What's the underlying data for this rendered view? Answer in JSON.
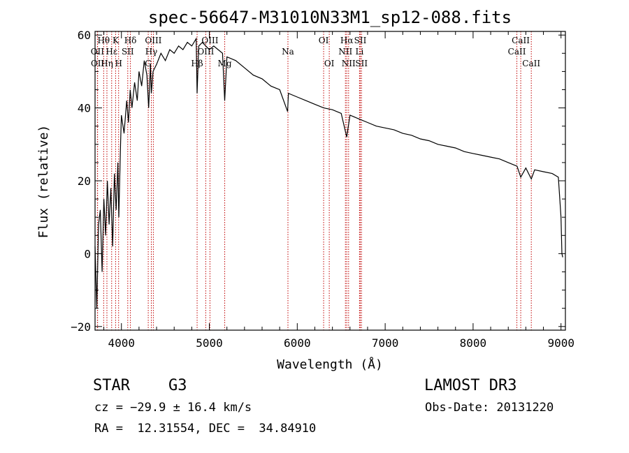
{
  "chart_data": {
    "type": "line",
    "title": "spec-56647-M31010N33M1_sp12-088.fits",
    "xlabel": "Wavelength (Å)",
    "ylabel": "Flux (relative)",
    "xlim": [
      3700,
      9050
    ],
    "ylim": [
      -21,
      61
    ],
    "xticks": [
      4000,
      5000,
      6000,
      7000,
      8000,
      9000
    ],
    "yticks": [
      -20,
      0,
      20,
      40,
      60
    ],
    "series": [
      {
        "name": "spectrum",
        "points": [
          [
            3700,
            2
          ],
          [
            3720,
            -15
          ],
          [
            3740,
            8
          ],
          [
            3760,
            12
          ],
          [
            3780,
            -5
          ],
          [
            3800,
            15
          ],
          [
            3820,
            5
          ],
          [
            3840,
            20
          ],
          [
            3860,
            8
          ],
          [
            3880,
            18
          ],
          [
            3900,
            2
          ],
          [
            3920,
            22
          ],
          [
            3940,
            12
          ],
          [
            3960,
            25
          ],
          [
            3970,
            10
          ],
          [
            3990,
            30
          ],
          [
            4000,
            38
          ],
          [
            4030,
            33
          ],
          [
            4060,
            42
          ],
          [
            4080,
            36
          ],
          [
            4100,
            45
          ],
          [
            4120,
            40
          ],
          [
            4150,
            47
          ],
          [
            4180,
            42
          ],
          [
            4200,
            50
          ],
          [
            4230,
            46
          ],
          [
            4260,
            53
          ],
          [
            4290,
            49
          ],
          [
            4310,
            40
          ],
          [
            4330,
            52
          ],
          [
            4340,
            44
          ],
          [
            4360,
            50
          ],
          [
            4400,
            52
          ],
          [
            4450,
            55
          ],
          [
            4500,
            53
          ],
          [
            4550,
            56
          ],
          [
            4600,
            55
          ],
          [
            4650,
            57
          ],
          [
            4700,
            56
          ],
          [
            4750,
            58
          ],
          [
            4800,
            57
          ],
          [
            4850,
            59
          ],
          [
            4861,
            44
          ],
          [
            4880,
            57
          ],
          [
            4920,
            58
          ],
          [
            4960,
            57
          ],
          [
            5000,
            56
          ],
          [
            5050,
            57
          ],
          [
            5100,
            56
          ],
          [
            5150,
            55
          ],
          [
            5175,
            42
          ],
          [
            5200,
            54
          ],
          [
            5300,
            53
          ],
          [
            5400,
            51
          ],
          [
            5500,
            49
          ],
          [
            5600,
            48
          ],
          [
            5700,
            46
          ],
          [
            5800,
            45
          ],
          [
            5890,
            39
          ],
          [
            5900,
            44
          ],
          [
            6000,
            43
          ],
          [
            6100,
            42
          ],
          [
            6200,
            41
          ],
          [
            6300,
            40
          ],
          [
            6400,
            39.5
          ],
          [
            6500,
            38.5
          ],
          [
            6563,
            32
          ],
          [
            6600,
            38
          ],
          [
            6700,
            37
          ],
          [
            6800,
            36
          ],
          [
            6900,
            35
          ],
          [
            7000,
            34.5
          ],
          [
            7100,
            34
          ],
          [
            7200,
            33
          ],
          [
            7300,
            32.5
          ],
          [
            7400,
            31.5
          ],
          [
            7500,
            31
          ],
          [
            7600,
            30
          ],
          [
            7700,
            29.5
          ],
          [
            7800,
            29
          ],
          [
            7900,
            28
          ],
          [
            8000,
            27.5
          ],
          [
            8100,
            27
          ],
          [
            8200,
            26.5
          ],
          [
            8300,
            26
          ],
          [
            8400,
            25
          ],
          [
            8500,
            24
          ],
          [
            8542,
            21
          ],
          [
            8600,
            23.5
          ],
          [
            8662,
            20.5
          ],
          [
            8700,
            23
          ],
          [
            8800,
            22.5
          ],
          [
            8900,
            22
          ],
          [
            8970,
            21
          ],
          [
            9000,
            10
          ],
          [
            9010,
            0
          ],
          [
            9020,
            -1
          ]
        ]
      }
    ],
    "lines": [
      {
        "label": "Hθ",
        "wavelength": 3798,
        "row": 1
      },
      {
        "label": "OII",
        "wavelength": 3727,
        "row": 2
      },
      {
        "label": "OII",
        "wavelength": 3729,
        "row": 3
      },
      {
        "label": "Hε",
        "wavelength": 3889,
        "row": 2
      },
      {
        "label": "Hη",
        "wavelength": 3835,
        "row": 3
      },
      {
        "label": "K",
        "wavelength": 3934,
        "row": 1
      },
      {
        "label": "H",
        "wavelength": 3968,
        "row": 3
      },
      {
        "label": "Hδ",
        "wavelength": 4102,
        "row": 1
      },
      {
        "label": "SII",
        "wavelength": 4072,
        "row": 2
      },
      {
        "label": "OIII",
        "wavelength": 4363,
        "row": 1
      },
      {
        "label": "Hγ",
        "wavelength": 4340,
        "row": 2
      },
      {
        "label": "G",
        "wavelength": 4305,
        "row": 3
      },
      {
        "label": "Hβ",
        "wavelength": 4861,
        "row": 3
      },
      {
        "label": "OIII",
        "wavelength": 5007,
        "row": 1
      },
      {
        "label": "OIII",
        "wavelength": 4959,
        "row": 2
      },
      {
        "label": "Mg",
        "wavelength": 5175,
        "row": 3
      },
      {
        "label": "Na",
        "wavelength": 5894,
        "row": 2
      },
      {
        "label": "OI",
        "wavelength": 6300,
        "row": 1
      },
      {
        "label": "OI",
        "wavelength": 6364,
        "row": 3
      },
      {
        "label": "Hα",
        "wavelength": 6563,
        "row": 1
      },
      {
        "label": "NII",
        "wavelength": 6548,
        "row": 2
      },
      {
        "label": "NII",
        "wavelength": 6584,
        "row": 3
      },
      {
        "label": "SII",
        "wavelength": 6717,
        "row": 1
      },
      {
        "label": "Li",
        "wavelength": 6708,
        "row": 2
      },
      {
        "label": "SII",
        "wavelength": 6731,
        "row": 3
      },
      {
        "label": "CaII",
        "wavelength": 8542,
        "row": 1
      },
      {
        "label": "CaII",
        "wavelength": 8498,
        "row": 2
      },
      {
        "label": "CaII",
        "wavelength": 8662,
        "row": 3
      }
    ]
  },
  "info": {
    "object_class": "STAR",
    "subclass": "G3",
    "survey": "LAMOST DR3",
    "cz": "cz = −29.9 ± 16.4 km/s",
    "obs_date": "Obs-Date: 20131220",
    "coords": "RA =  12.31554, DEC =  34.84910"
  }
}
